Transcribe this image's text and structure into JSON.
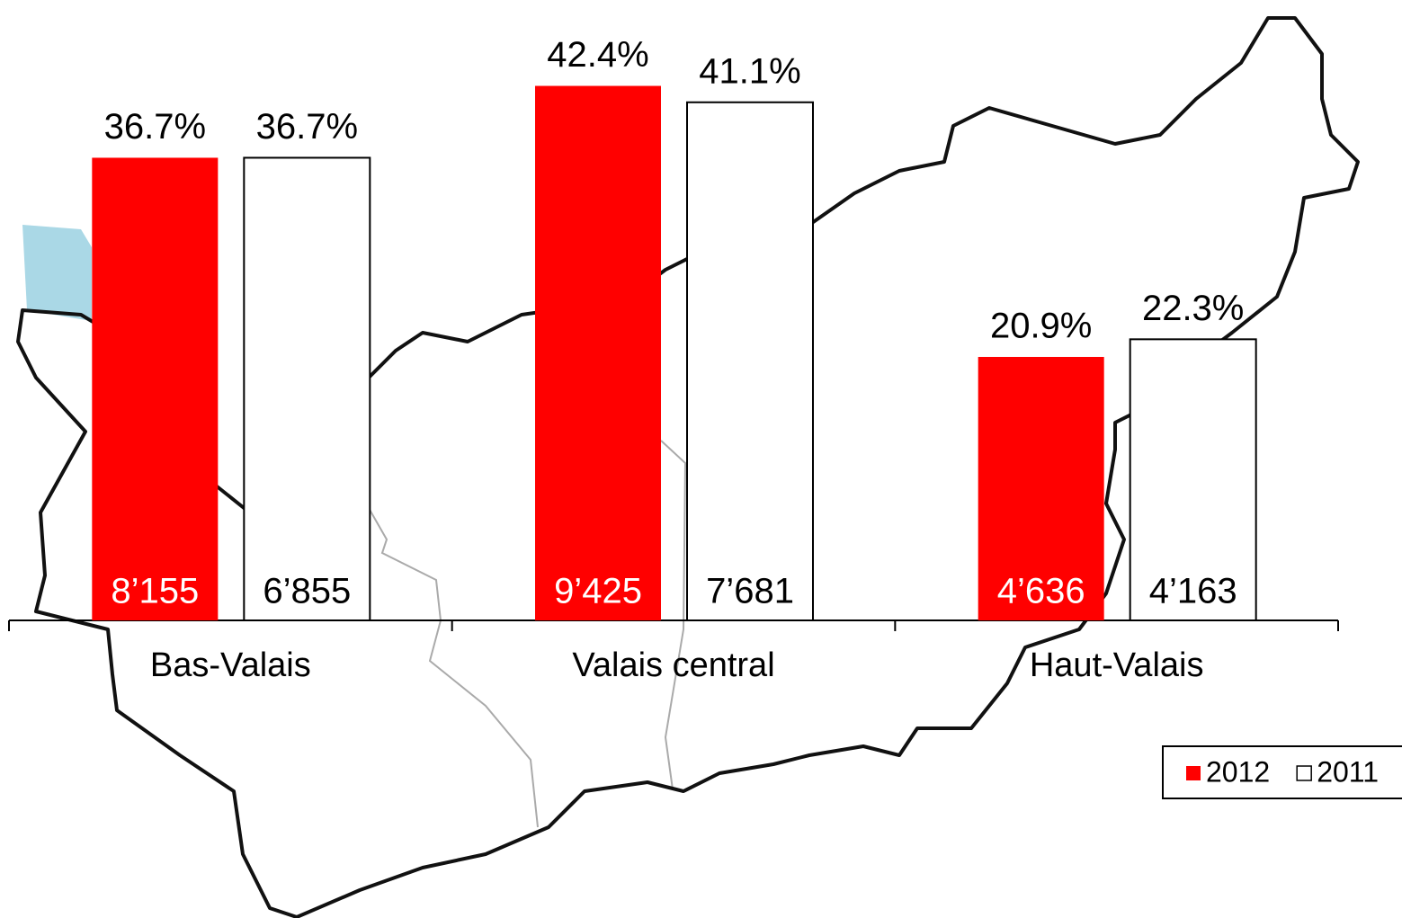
{
  "chart_data": {
    "type": "bar",
    "categories": [
      "Bas-Valais",
      "Valais central",
      "Haut-Valais"
    ],
    "series": [
      {
        "name": "2012",
        "color": "#ff0000",
        "values": [
          36.7,
          42.4,
          20.9
        ],
        "value_labels": [
          "36.7%",
          "42.4%",
          "20.9%"
        ],
        "count_labels": [
          "8’155",
          "9’425",
          "4’636"
        ]
      },
      {
        "name": "2011",
        "color": "#ffffff",
        "values": [
          36.7,
          41.1,
          22.3
        ],
        "value_labels": [
          "36.7%",
          "41.1%",
          "22.3%"
        ],
        "count_labels": [
          "6’855",
          "7’681",
          "4’163"
        ]
      }
    ],
    "ylim": [
      0,
      49
    ],
    "legend": "bottom-right"
  }
}
